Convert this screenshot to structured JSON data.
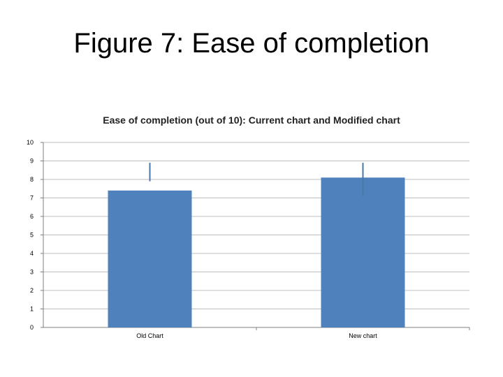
{
  "slide": {
    "title": "Figure 7: Ease of completion"
  },
  "chart_data": {
    "type": "bar",
    "title": "Ease of completion (out of 10): Current chart and Modified chart",
    "categories": [
      "Old Chart",
      "New chart"
    ],
    "values": [
      7.4,
      8.1
    ],
    "error_upper": [
      8.9,
      8.9
    ],
    "error_lower": [
      7.9,
      7.1
    ],
    "ylim": [
      0,
      10
    ],
    "yticks": [
      0,
      1,
      2,
      3,
      4,
      5,
      6,
      7,
      8,
      9,
      10
    ],
    "grid": true,
    "legend": "none",
    "bar_color": "#4f81bd",
    "error_color": "#4a77a8"
  }
}
